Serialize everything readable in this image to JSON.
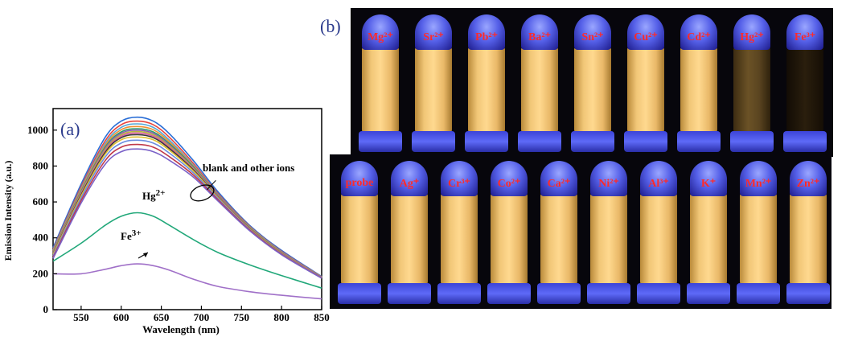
{
  "chart_data": {
    "type": "line",
    "panel_label": "(a)",
    "xlabel": "Wavelength (nm)",
    "ylabel": "Emission Intensity (a.u.)",
    "xlim": [
      515,
      850
    ],
    "ylim": [
      0,
      1120
    ],
    "xticks": [
      550,
      600,
      650,
      700,
      750,
      800,
      850
    ],
    "yticks": [
      0,
      200,
      400,
      600,
      800,
      1000
    ],
    "x": [
      515,
      550,
      580,
      600,
      620,
      640,
      660,
      690,
      720,
      760,
      800,
      850
    ],
    "series": [
      {
        "color": "#2a6ed6",
        "values": [
          345,
          700,
          960,
          1050,
          1072,
          1050,
          980,
          830,
          660,
          470,
          330,
          185
        ]
      },
      {
        "color": "#e8453c",
        "values": [
          335,
          685,
          940,
          1030,
          1050,
          1030,
          960,
          815,
          650,
          465,
          325,
          183
        ]
      },
      {
        "color": "#55a8d8",
        "values": [
          330,
          675,
          925,
          1015,
          1035,
          1015,
          945,
          805,
          645,
          462,
          322,
          182
        ]
      },
      {
        "color": "#f09030",
        "values": [
          325,
          668,
          915,
          1002,
          1020,
          1002,
          935,
          800,
          642,
          460,
          320,
          181
        ]
      },
      {
        "color": "#2e9c6a",
        "values": [
          320,
          660,
          905,
          990,
          1008,
          990,
          925,
          795,
          640,
          458,
          318,
          180
        ]
      },
      {
        "color": "#8e5bb8",
        "values": [
          318,
          655,
          898,
          982,
          1000,
          982,
          918,
          790,
          638,
          456,
          317,
          180
        ]
      },
      {
        "color": "#b8b83a",
        "values": [
          315,
          650,
          890,
          974,
          992,
          974,
          912,
          786,
          635,
          455,
          316,
          179
        ]
      },
      {
        "color": "#d85aa0",
        "values": [
          312,
          645,
          883,
          966,
          984,
          966,
          905,
          782,
          633,
          454,
          315,
          179
        ]
      },
      {
        "color": "#3a3a3a",
        "values": [
          310,
          640,
          876,
          958,
          975,
          958,
          898,
          778,
          630,
          452,
          314,
          178
        ]
      },
      {
        "color": "#e0c030",
        "values": [
          307,
          633,
          866,
          946,
          962,
          946,
          888,
          772,
          627,
          450,
          313,
          178
        ]
      },
      {
        "color": "#6a8ce0",
        "values": [
          300,
          622,
          850,
          928,
          944,
          928,
          872,
          762,
          622,
          447,
          311,
          177
        ]
      },
      {
        "color": "#c0394a",
        "values": [
          292,
          608,
          830,
          905,
          920,
          905,
          852,
          750,
          615,
          444,
          309,
          176
        ]
      },
      {
        "color": "#7b62c8",
        "values": [
          285,
          594,
          810,
          880,
          895,
          880,
          832,
          738,
          608,
          440,
          306,
          175
        ]
      },
      {
        "name": "Hg2+",
        "color": "#22a87a",
        "values": [
          270,
          370,
          470,
          520,
          540,
          520,
          470,
          390,
          320,
          250,
          190,
          120
        ]
      },
      {
        "name": "Fe3+",
        "color": "#a070c8",
        "values": [
          200,
          200,
          225,
          245,
          255,
          245,
          220,
          170,
          130,
          100,
          80,
          60
        ]
      }
    ],
    "annotations": [
      {
        "text": "blank and other ions"
      },
      {
        "text": "Hg",
        "sup": "2+"
      },
      {
        "text": "Fe",
        "sup": "3+"
      }
    ]
  },
  "photo_panel": {
    "label": "(b)",
    "top_row": [
      "Mg²⁺",
      "Sr²⁺",
      "Pb²⁺",
      "Ba²⁺",
      "Sn²⁺",
      "Cu²⁺",
      "Cd²⁺",
      "Hg²⁺",
      "Fe³⁺"
    ],
    "bottom_row": [
      "probe",
      "Ag⁺",
      "Cr³⁺",
      "Co²⁺",
      "Ca²⁺",
      "Ni²⁺",
      "Al³⁺",
      "K⁺",
      "Mn²⁺",
      "Zn²⁺"
    ],
    "colors": {
      "cap": "#5560e8",
      "solution": "#ffd98f",
      "label": "#ff2a2a"
    }
  }
}
